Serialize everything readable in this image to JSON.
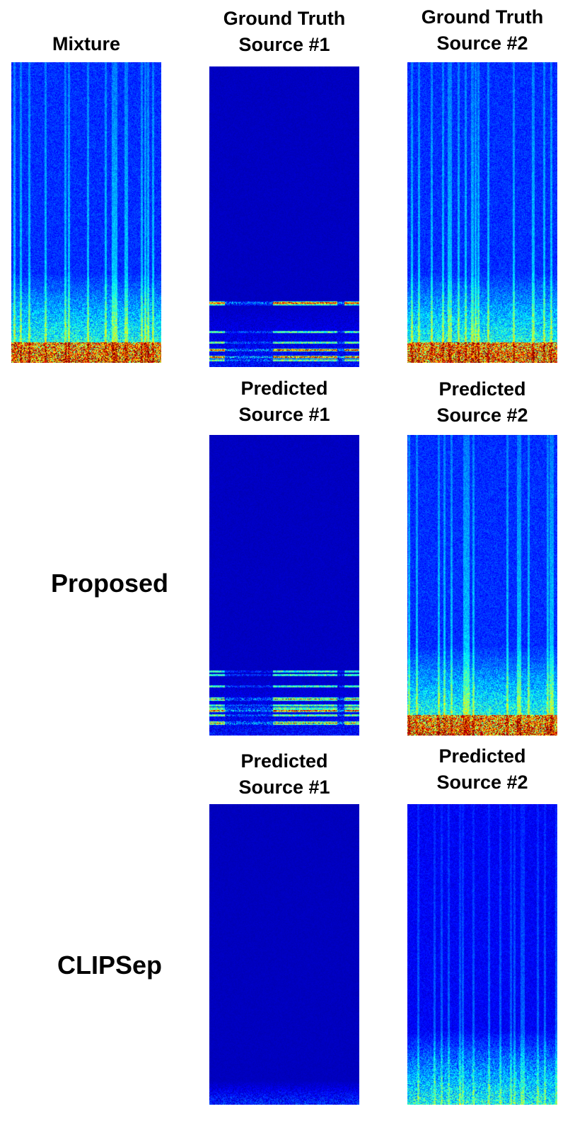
{
  "columns": {
    "mixture": {
      "title": "Mixture"
    },
    "gt_source1": {
      "line1": "Ground Truth",
      "line2": "Source #1"
    },
    "gt_source2": {
      "line1": "Ground Truth",
      "line2": "Source #2"
    }
  },
  "rows": {
    "proposed": {
      "label": "Proposed",
      "source1": {
        "line1": "Predicted",
        "line2": "Source #1"
      },
      "source2": {
        "line1": "Predicted",
        "line2": "Source #2"
      }
    },
    "clipsep": {
      "label": "CLIPSep",
      "source1": {
        "line1": "Predicted",
        "line2": "Source #1"
      },
      "source2": {
        "line1": "Predicted",
        "line2": "Source #2"
      }
    }
  },
  "colors": {
    "background": "#00008f",
    "colormap": [
      "#00008f",
      "#0000ff",
      "#0080ff",
      "#00ffff",
      "#80ff80",
      "#ffff00",
      "#ff8000",
      "#ff0000",
      "#800000"
    ]
  }
}
